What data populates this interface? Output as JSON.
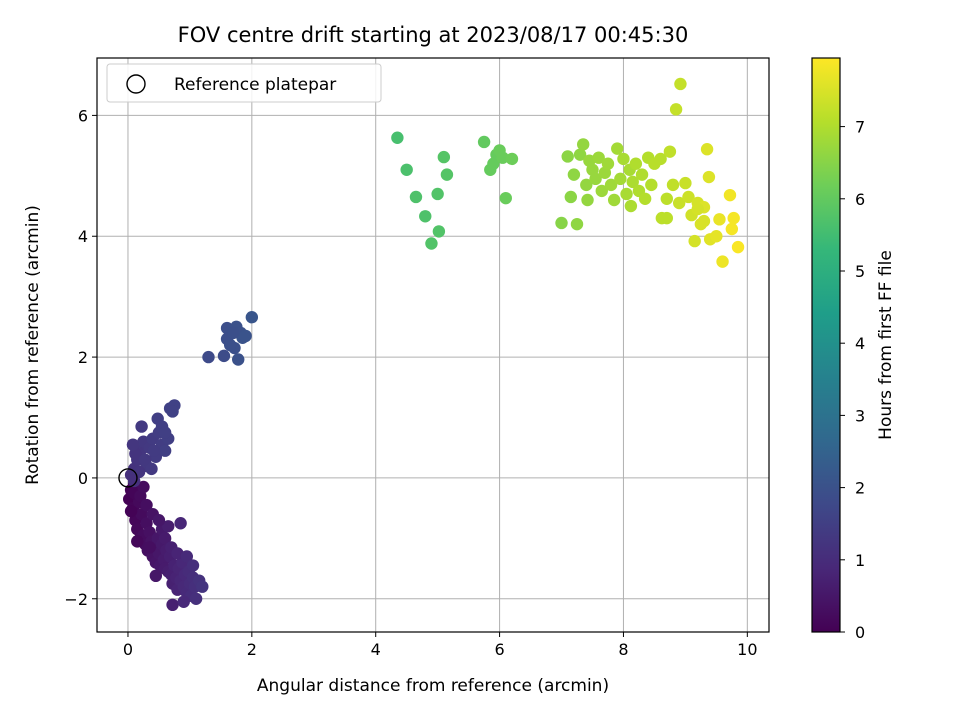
{
  "chart_data": {
    "type": "scatter",
    "title": "FOV centre drift starting at 2023/08/17 00:45:30",
    "xlabel": "Angular distance from reference (arcmin)",
    "ylabel": "Rotation from reference (arcmin)",
    "xlim": [
      -0.5,
      10.35
    ],
    "ylim": [
      -2.55,
      6.95
    ],
    "xticks": [
      0,
      2,
      4,
      6,
      8,
      10
    ],
    "yticks": [
      -2,
      0,
      2,
      4,
      6
    ],
    "grid": true,
    "legend": {
      "placement": "upper-left",
      "entries": [
        {
          "label": "Reference platepar",
          "marker": "open-circle"
        }
      ]
    },
    "reference_point": {
      "x": 0,
      "y": 0
    },
    "colorbar": {
      "label": "Hours from first FF file",
      "range": [
        0,
        7.95
      ],
      "ticks": [
        0,
        1,
        2,
        3,
        4,
        5,
        6,
        7
      ],
      "colormap": "viridis",
      "colormap_stops": [
        "#440154",
        "#482878",
        "#3e4989",
        "#31688e",
        "#26828e",
        "#1f9e89",
        "#35b779",
        "#6ece58",
        "#b5de2b",
        "#fde725"
      ]
    },
    "points": [
      {
        "x": 0.02,
        "y": -0.35,
        "h": 0.02
      },
      {
        "x": 0.05,
        "y": -0.2,
        "h": 0.05
      },
      {
        "x": 0.08,
        "y": -0.5,
        "h": 0.08
      },
      {
        "x": 0.1,
        "y": -0.1,
        "h": 0.1
      },
      {
        "x": 0.12,
        "y": -0.7,
        "h": 0.12
      },
      {
        "x": 0.15,
        "y": -0.85,
        "h": 0.15
      },
      {
        "x": 0.18,
        "y": -0.4,
        "h": 0.18
      },
      {
        "x": 0.2,
        "y": -1.0,
        "h": 0.2
      },
      {
        "x": 0.22,
        "y": -0.6,
        "h": 0.22
      },
      {
        "x": 0.25,
        "y": -0.95,
        "h": 0.25
      },
      {
        "x": 0.28,
        "y": -1.1,
        "h": 0.28
      },
      {
        "x": 0.3,
        "y": -0.75,
        "h": 0.3
      },
      {
        "x": 0.32,
        "y": -1.2,
        "h": 0.32
      },
      {
        "x": 0.35,
        "y": -0.9,
        "h": 0.35
      },
      {
        "x": 0.38,
        "y": -1.05,
        "h": 0.38
      },
      {
        "x": 0.4,
        "y": -1.3,
        "h": 0.4
      },
      {
        "x": 0.42,
        "y": -1.15,
        "h": 0.42
      },
      {
        "x": 0.45,
        "y": -1.4,
        "h": 0.45
      },
      {
        "x": 0.48,
        "y": -1.0,
        "h": 0.48
      },
      {
        "x": 0.5,
        "y": -1.25,
        "h": 0.5
      },
      {
        "x": 0.52,
        "y": -1.45,
        "h": 0.52
      },
      {
        "x": 0.55,
        "y": -1.1,
        "h": 0.55
      },
      {
        "x": 0.58,
        "y": -1.35,
        "h": 0.58
      },
      {
        "x": 0.6,
        "y": -1.5,
        "h": 0.6
      },
      {
        "x": 0.62,
        "y": -1.2,
        "h": 0.62
      },
      {
        "x": 0.65,
        "y": -1.55,
        "h": 0.65
      },
      {
        "x": 0.68,
        "y": -1.3,
        "h": 0.68
      },
      {
        "x": 0.7,
        "y": -1.6,
        "h": 0.7
      },
      {
        "x": 0.72,
        "y": -1.75,
        "h": 0.72
      },
      {
        "x": 0.75,
        "y": -1.45,
        "h": 0.75
      },
      {
        "x": 0.78,
        "y": -1.65,
        "h": 0.78
      },
      {
        "x": 0.8,
        "y": -1.85,
        "h": 0.8
      },
      {
        "x": 0.82,
        "y": -1.5,
        "h": 0.82
      },
      {
        "x": 0.85,
        "y": -1.7,
        "h": 0.85
      },
      {
        "x": 0.88,
        "y": -1.4,
        "h": 0.88
      },
      {
        "x": 0.9,
        "y": -1.8,
        "h": 0.9
      },
      {
        "x": 0.92,
        "y": -1.6,
        "h": 0.92
      },
      {
        "x": 0.95,
        "y": -1.9,
        "h": 0.95
      },
      {
        "x": 0.98,
        "y": -1.55,
        "h": 0.98
      },
      {
        "x": 1.0,
        "y": -1.75,
        "h": 1.0
      },
      {
        "x": 1.02,
        "y": -1.95,
        "h": 1.02
      },
      {
        "x": 1.05,
        "y": -1.65,
        "h": 1.05
      },
      {
        "x": 1.08,
        "y": -1.8,
        "h": 1.08
      },
      {
        "x": 1.1,
        "y": -2.0,
        "h": 1.1
      },
      {
        "x": 1.15,
        "y": -1.7,
        "h": 1.15
      },
      {
        "x": 1.2,
        "y": -1.8,
        "h": 1.2
      },
      {
        "x": 0.72,
        "y": -2.1,
        "h": 0.7
      },
      {
        "x": 0.9,
        "y": -2.05,
        "h": 0.92
      },
      {
        "x": 0.45,
        "y": -1.62,
        "h": 0.5
      },
      {
        "x": 0.85,
        "y": -0.75,
        "h": 0.85
      },
      {
        "x": 0.55,
        "y": -0.85,
        "h": 0.55
      },
      {
        "x": 0.65,
        "y": -0.8,
        "h": 0.65
      },
      {
        "x": 0.35,
        "y": -1.15,
        "h": 0.3
      },
      {
        "x": 0.15,
        "y": -1.05,
        "h": 0.15
      },
      {
        "x": 0.05,
        "y": -0.55,
        "h": 0.05
      },
      {
        "x": 0.1,
        "y": -0.25,
        "h": 0.1
      },
      {
        "x": 0.2,
        "y": -0.3,
        "h": 0.2
      },
      {
        "x": 0.3,
        "y": -0.45,
        "h": 0.3
      },
      {
        "x": 0.25,
        "y": -0.15,
        "h": 0.25
      },
      {
        "x": 0.4,
        "y": -0.6,
        "h": 0.4
      },
      {
        "x": 0.5,
        "y": -0.7,
        "h": 0.5
      },
      {
        "x": 0.6,
        "y": -1.0,
        "h": 0.6
      },
      {
        "x": 0.7,
        "y": -1.15,
        "h": 0.7
      },
      {
        "x": 0.8,
        "y": -1.25,
        "h": 0.8
      },
      {
        "x": 0.95,
        "y": -1.3,
        "h": 0.95
      },
      {
        "x": 1.05,
        "y": -1.45,
        "h": 1.05
      },
      {
        "x": 0.05,
        "y": 0.05,
        "h": 1.1
      },
      {
        "x": 0.1,
        "y": 0.15,
        "h": 1.15
      },
      {
        "x": 0.15,
        "y": 0.3,
        "h": 1.2
      },
      {
        "x": 0.2,
        "y": 0.45,
        "h": 1.25
      },
      {
        "x": 0.25,
        "y": 0.6,
        "h": 1.3
      },
      {
        "x": 0.12,
        "y": 0.4,
        "h": 1.2
      },
      {
        "x": 0.08,
        "y": 0.55,
        "h": 1.25
      },
      {
        "x": 0.3,
        "y": 0.2,
        "h": 1.3
      },
      {
        "x": 0.35,
        "y": 0.5,
        "h": 1.35
      },
      {
        "x": 0.4,
        "y": 0.65,
        "h": 1.4
      },
      {
        "x": 0.45,
        "y": 0.35,
        "h": 1.4
      },
      {
        "x": 0.5,
        "y": 0.75,
        "h": 1.45
      },
      {
        "x": 0.55,
        "y": 0.55,
        "h": 1.45
      },
      {
        "x": 0.6,
        "y": 0.45,
        "h": 1.5
      },
      {
        "x": 0.65,
        "y": 0.65,
        "h": 1.5
      },
      {
        "x": 0.22,
        "y": 0.85,
        "h": 1.35
      },
      {
        "x": 0.48,
        "y": 0.98,
        "h": 1.5
      },
      {
        "x": 0.55,
        "y": 0.85,
        "h": 1.5
      },
      {
        "x": 0.68,
        "y": 1.15,
        "h": 1.55
      },
      {
        "x": 0.75,
        "y": 1.2,
        "h": 1.55
      },
      {
        "x": 0.72,
        "y": 1.1,
        "h": 1.55
      },
      {
        "x": 0.18,
        "y": 0.1,
        "h": 1.2
      },
      {
        "x": 0.28,
        "y": 0.3,
        "h": 1.3
      },
      {
        "x": 0.38,
        "y": 0.15,
        "h": 1.35
      },
      {
        "x": 0.42,
        "y": 0.45,
        "h": 1.4
      },
      {
        "x": 0.6,
        "y": 0.75,
        "h": 1.5
      },
      {
        "x": 0.1,
        "y": -0.05,
        "h": 1.1
      },
      {
        "x": 1.3,
        "y": 2.0,
        "h": 1.8
      },
      {
        "x": 1.55,
        "y": 2.02,
        "h": 1.85
      },
      {
        "x": 1.6,
        "y": 2.3,
        "h": 1.9
      },
      {
        "x": 1.6,
        "y": 2.48,
        "h": 1.9
      },
      {
        "x": 1.68,
        "y": 2.45,
        "h": 1.95
      },
      {
        "x": 1.72,
        "y": 2.15,
        "h": 1.95
      },
      {
        "x": 1.75,
        "y": 2.5,
        "h": 2.0
      },
      {
        "x": 1.78,
        "y": 1.96,
        "h": 2.0
      },
      {
        "x": 1.82,
        "y": 2.4,
        "h": 2.0
      },
      {
        "x": 1.85,
        "y": 2.32,
        "h": 2.05
      },
      {
        "x": 1.9,
        "y": 2.35,
        "h": 2.05
      },
      {
        "x": 2.0,
        "y": 2.66,
        "h": 2.1
      },
      {
        "x": 1.65,
        "y": 2.2,
        "h": 1.95
      },
      {
        "x": 1.7,
        "y": 2.4,
        "h": 1.95
      },
      {
        "x": 4.35,
        "y": 5.63,
        "h": 5.6
      },
      {
        "x": 4.5,
        "y": 5.1,
        "h": 5.65
      },
      {
        "x": 4.65,
        "y": 4.65,
        "h": 5.7
      },
      {
        "x": 4.8,
        "y": 4.33,
        "h": 5.7
      },
      {
        "x": 4.9,
        "y": 3.88,
        "h": 5.75
      },
      {
        "x": 5.0,
        "y": 4.7,
        "h": 5.75
      },
      {
        "x": 5.02,
        "y": 4.08,
        "h": 5.75
      },
      {
        "x": 5.1,
        "y": 5.31,
        "h": 5.8
      },
      {
        "x": 5.15,
        "y": 5.02,
        "h": 5.8
      },
      {
        "x": 5.75,
        "y": 5.56,
        "h": 6.0
      },
      {
        "x": 5.85,
        "y": 5.1,
        "h": 6.05
      },
      {
        "x": 5.9,
        "y": 5.2,
        "h": 6.05
      },
      {
        "x": 5.95,
        "y": 5.35,
        "h": 6.05
      },
      {
        "x": 6.0,
        "y": 5.42,
        "h": 6.1
      },
      {
        "x": 6.05,
        "y": 5.3,
        "h": 6.1
      },
      {
        "x": 6.1,
        "y": 4.63,
        "h": 6.1
      },
      {
        "x": 6.2,
        "y": 5.28,
        "h": 6.15
      },
      {
        "x": 7.0,
        "y": 4.22,
        "h": 6.5
      },
      {
        "x": 7.1,
        "y": 5.32,
        "h": 6.55
      },
      {
        "x": 7.15,
        "y": 4.65,
        "h": 6.55
      },
      {
        "x": 7.2,
        "y": 5.02,
        "h": 6.6
      },
      {
        "x": 7.25,
        "y": 4.2,
        "h": 6.6
      },
      {
        "x": 7.3,
        "y": 5.35,
        "h": 6.6
      },
      {
        "x": 7.35,
        "y": 5.52,
        "h": 6.65
      },
      {
        "x": 7.4,
        "y": 4.85,
        "h": 6.65
      },
      {
        "x": 7.42,
        "y": 4.6,
        "h": 6.65
      },
      {
        "x": 7.45,
        "y": 5.25,
        "h": 6.7
      },
      {
        "x": 7.5,
        "y": 5.1,
        "h": 6.7
      },
      {
        "x": 7.55,
        "y": 4.95,
        "h": 6.7
      },
      {
        "x": 7.6,
        "y": 5.3,
        "h": 6.75
      },
      {
        "x": 7.65,
        "y": 4.75,
        "h": 6.75
      },
      {
        "x": 7.7,
        "y": 5.05,
        "h": 6.75
      },
      {
        "x": 7.75,
        "y": 5.2,
        "h": 6.8
      },
      {
        "x": 7.8,
        "y": 4.85,
        "h": 6.8
      },
      {
        "x": 7.85,
        "y": 4.6,
        "h": 6.8
      },
      {
        "x": 7.9,
        "y": 5.45,
        "h": 6.85
      },
      {
        "x": 7.95,
        "y": 4.95,
        "h": 6.85
      },
      {
        "x": 8.0,
        "y": 5.28,
        "h": 6.9
      },
      {
        "x": 8.05,
        "y": 4.7,
        "h": 6.9
      },
      {
        "x": 8.1,
        "y": 5.1,
        "h": 6.9
      },
      {
        "x": 8.12,
        "y": 4.5,
        "h": 6.95
      },
      {
        "x": 8.15,
        "y": 4.9,
        "h": 6.95
      },
      {
        "x": 8.2,
        "y": 5.2,
        "h": 7.0
      },
      {
        "x": 8.25,
        "y": 4.75,
        "h": 7.0
      },
      {
        "x": 8.3,
        "y": 5.02,
        "h": 7.0
      },
      {
        "x": 8.35,
        "y": 4.62,
        "h": 7.05
      },
      {
        "x": 8.4,
        "y": 5.3,
        "h": 7.05
      },
      {
        "x": 8.45,
        "y": 4.85,
        "h": 7.05
      },
      {
        "x": 8.5,
        "y": 5.2,
        "h": 7.1
      },
      {
        "x": 8.6,
        "y": 5.28,
        "h": 7.1
      },
      {
        "x": 8.62,
        "y": 4.3,
        "h": 7.15
      },
      {
        "x": 8.7,
        "y": 4.3,
        "h": 7.15
      },
      {
        "x": 8.7,
        "y": 4.62,
        "h": 7.15
      },
      {
        "x": 8.75,
        "y": 5.4,
        "h": 7.2
      },
      {
        "x": 8.8,
        "y": 4.85,
        "h": 7.2
      },
      {
        "x": 8.85,
        "y": 6.1,
        "h": 7.25
      },
      {
        "x": 8.92,
        "y": 6.52,
        "h": 7.25
      },
      {
        "x": 8.9,
        "y": 4.55,
        "h": 7.3
      },
      {
        "x": 9.0,
        "y": 4.88,
        "h": 7.3
      },
      {
        "x": 9.05,
        "y": 4.65,
        "h": 7.35
      },
      {
        "x": 9.1,
        "y": 4.35,
        "h": 7.4
      },
      {
        "x": 9.15,
        "y": 3.92,
        "h": 7.45
      },
      {
        "x": 9.2,
        "y": 4.55,
        "h": 7.45
      },
      {
        "x": 9.25,
        "y": 4.2,
        "h": 7.5
      },
      {
        "x": 9.3,
        "y": 4.48,
        "h": 7.55
      },
      {
        "x": 9.35,
        "y": 5.44,
        "h": 7.55
      },
      {
        "x": 9.38,
        "y": 4.98,
        "h": 7.55
      },
      {
        "x": 9.4,
        "y": 3.95,
        "h": 7.6
      },
      {
        "x": 9.5,
        "y": 4.0,
        "h": 7.65
      },
      {
        "x": 9.55,
        "y": 4.28,
        "h": 7.7
      },
      {
        "x": 9.6,
        "y": 3.58,
        "h": 7.75
      },
      {
        "x": 9.72,
        "y": 4.68,
        "h": 7.8
      },
      {
        "x": 9.78,
        "y": 4.3,
        "h": 7.85
      },
      {
        "x": 9.75,
        "y": 4.12,
        "h": 7.85
      },
      {
        "x": 9.85,
        "y": 3.82,
        "h": 7.9
      },
      {
        "x": 9.3,
        "y": 4.25,
        "h": 7.5
      },
      {
        "x": 9.2,
        "y": 4.45,
        "h": 7.45
      }
    ]
  }
}
